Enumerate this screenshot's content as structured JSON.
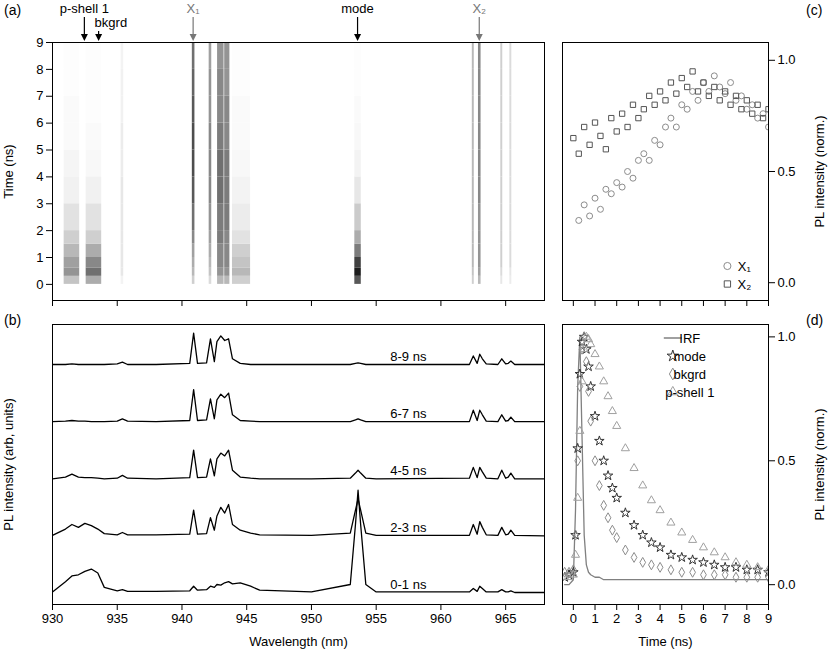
{
  "chart_data": [
    {
      "type": "heatmap",
      "title": "(a)",
      "y_label": "Time (ns)",
      "xlim": [
        930,
        968
      ],
      "xticks": [
        930,
        935,
        940,
        945,
        950,
        955,
        960,
        965
      ],
      "ylim": [
        -0.6,
        9
      ],
      "yticks": [
        0,
        1,
        2,
        3,
        4,
        5,
        6,
        7,
        8,
        9
      ],
      "tick_labels": "y",
      "zlim": [
        0,
        1
      ],
      "time_bins": [
        -0.6,
        0,
        0.3,
        0.6,
        1,
        1.5,
        2,
        3,
        4,
        5,
        6,
        7,
        8,
        9
      ],
      "lines": [
        {
          "wavelength": 931.5,
          "width": 1.2,
          "values": [
            0,
            0.25,
            0.45,
            0.4,
            0.3,
            0.2,
            0.12,
            0.06,
            0.04,
            0.02,
            0.02,
            0.01,
            0.01
          ]
        },
        {
          "wavelength": 933.2,
          "width": 1.2,
          "values": [
            0,
            0.35,
            0.6,
            0.5,
            0.35,
            0.2,
            0.12,
            0.06,
            0.03,
            0.02,
            0.01,
            0.01,
            0.01
          ]
        },
        {
          "wavelength": 935.4,
          "width": 0.2,
          "values": [
            0,
            0.05,
            0.1,
            0.1,
            0.1,
            0.1,
            0.1,
            0.1,
            0.08,
            0.08,
            0.06,
            0.06,
            0.05
          ]
        },
        {
          "wavelength": 940.9,
          "width": 0.2,
          "values": [
            0,
            0.2,
            0.3,
            0.35,
            0.4,
            0.5,
            0.6,
            0.7,
            0.75,
            0.75,
            0.7,
            0.65,
            0.6
          ]
        },
        {
          "wavelength": 942.2,
          "width": 0.2,
          "values": [
            0,
            0.15,
            0.25,
            0.3,
            0.35,
            0.4,
            0.45,
            0.5,
            0.5,
            0.5,
            0.45,
            0.45,
            0.4
          ]
        },
        {
          "wavelength": 943.0,
          "width": 0.5,
          "values": [
            0,
            0.3,
            0.45,
            0.5,
            0.5,
            0.55,
            0.55,
            0.6,
            0.6,
            0.55,
            0.5,
            0.5,
            0.45
          ]
        },
        {
          "wavelength": 943.5,
          "width": 0.4,
          "values": [
            0,
            0.3,
            0.45,
            0.5,
            0.5,
            0.5,
            0.55,
            0.55,
            0.55,
            0.5,
            0.5,
            0.45,
            0.45
          ]
        },
        {
          "wavelength": 944.6,
          "width": 1.4,
          "values": [
            0,
            0.2,
            0.3,
            0.25,
            0.2,
            0.12,
            0.08,
            0.05,
            0.03,
            0.02,
            0.02,
            0.01,
            0.01
          ]
        },
        {
          "wavelength": 953.6,
          "width": 0.5,
          "values": [
            0,
            0.7,
            0.95,
            0.8,
            0.55,
            0.35,
            0.22,
            0.1,
            0.05,
            0.03,
            0.02,
            0.01,
            0.01
          ]
        },
        {
          "wavelength": 962.5,
          "width": 0.15,
          "values": [
            0,
            0.2,
            0.25,
            0.3,
            0.3,
            0.3,
            0.3,
            0.3,
            0.3,
            0.3,
            0.3,
            0.3,
            0.3
          ]
        },
        {
          "wavelength": 963.0,
          "width": 0.2,
          "values": [
            0,
            0.3,
            0.4,
            0.45,
            0.45,
            0.45,
            0.45,
            0.5,
            0.5,
            0.5,
            0.5,
            0.5,
            0.5
          ]
        },
        {
          "wavelength": 964.7,
          "width": 0.15,
          "values": [
            0,
            0.1,
            0.15,
            0.2,
            0.2,
            0.2,
            0.2,
            0.2,
            0.2,
            0.2,
            0.2,
            0.2,
            0.2
          ]
        },
        {
          "wavelength": 965.4,
          "width": 0.15,
          "values": [
            0,
            0.08,
            0.1,
            0.15,
            0.15,
            0.15,
            0.15,
            0.15,
            0.15,
            0.15,
            0.15,
            0.15,
            0.15
          ]
        }
      ],
      "annotations": [
        {
          "text": "p-shell 1",
          "x": 932.5,
          "color": "#000000"
        },
        {
          "text": "bkgrd",
          "x": 933.6,
          "color": "#000000"
        },
        {
          "text": "X₁",
          "x": 940.9,
          "color": "#777777"
        },
        {
          "text": "mode",
          "x": 953.6,
          "color": "#000000"
        },
        {
          "text": "X₂",
          "x": 963.0,
          "color": "#777777"
        }
      ]
    },
    {
      "type": "line",
      "title": "(b)",
      "x_label": "Wavelength (nm)",
      "y_label": "PL intensity (arb, units)",
      "xlim": [
        930,
        968
      ],
      "xticks": [
        930,
        935,
        940,
        945,
        950,
        955,
        960,
        965
      ],
      "ylim": [
        -0.2,
        4.7
      ],
      "tick_labels": "x",
      "x": [
        930,
        931,
        931.5,
        932,
        932.5,
        933,
        933.5,
        934,
        935,
        935.4,
        935.8,
        938,
        940.6,
        940.9,
        941.2,
        941.9,
        942.2,
        942.5,
        942.7,
        943.0,
        943.3,
        943.6,
        943.9,
        944.5,
        945.3,
        946,
        950,
        953.0,
        953.4,
        953.6,
        953.8,
        954.2,
        955,
        962.2,
        962.5,
        962.8,
        963.0,
        963.2,
        963.5,
        964.4,
        964.7,
        965.0,
        965.2,
        965.4,
        965.7,
        968
      ],
      "series": [
        {
          "name": "0-1 ns",
          "color": "#000000",
          "values": [
            0.02,
            0.2,
            0.3,
            0.32,
            0.38,
            0.42,
            0.35,
            0.1,
            0.04,
            0.06,
            0.03,
            0.03,
            0.04,
            0.12,
            0.05,
            0.06,
            0.12,
            0.1,
            0.15,
            0.14,
            0.18,
            0.2,
            0.16,
            0.18,
            0.12,
            0.05,
            0.02,
            0.15,
            1.2,
            1.8,
            1.2,
            0.15,
            0.02,
            0.02,
            0.08,
            0.03,
            0.12,
            0.08,
            0.02,
            0.02,
            0.06,
            0.02,
            0.02,
            0.04,
            0.01,
            0.01
          ]
        },
        {
          "name": "2-3 ns",
          "color": "#000000",
          "values": [
            1.01,
            1.12,
            1.2,
            1.15,
            1.22,
            1.18,
            1.12,
            1.04,
            1.02,
            1.06,
            1.02,
            1.02,
            1.03,
            1.45,
            1.03,
            1.04,
            1.32,
            1.1,
            1.35,
            1.5,
            1.4,
            1.55,
            1.2,
            1.1,
            1.05,
            1.02,
            1.01,
            1.05,
            1.45,
            1.65,
            1.45,
            1.05,
            1.01,
            1.01,
            1.2,
            1.03,
            1.25,
            1.15,
            1.02,
            1.01,
            1.15,
            1.02,
            1.03,
            1.1,
            1.01,
            1.0
          ]
        },
        {
          "name": "4-5 ns",
          "color": "#000000",
          "values": [
            2.0,
            2.03,
            2.08,
            2.03,
            2.02,
            2.02,
            2.01,
            2.0,
            2.01,
            2.06,
            2.01,
            2.0,
            2.02,
            2.5,
            2.02,
            2.03,
            2.35,
            2.05,
            2.35,
            2.45,
            2.4,
            2.5,
            2.15,
            2.03,
            2.01,
            2.0,
            2.0,
            2.01,
            2.1,
            2.15,
            2.1,
            2.01,
            2.0,
            2.01,
            2.2,
            2.02,
            2.2,
            2.12,
            2.01,
            2.0,
            2.15,
            2.01,
            2.03,
            2.1,
            2.0,
            2.0
          ]
        },
        {
          "name": "6-7 ns",
          "color": "#000000",
          "values": [
            3.0,
            3.01,
            3.02,
            3.01,
            3.01,
            3.0,
            3.0,
            3.0,
            3.01,
            3.05,
            3.01,
            3.0,
            3.02,
            3.56,
            3.02,
            3.03,
            3.4,
            3.05,
            3.38,
            3.48,
            3.42,
            3.5,
            3.12,
            3.02,
            3.01,
            3.0,
            3.0,
            3.0,
            3.03,
            3.05,
            3.03,
            3.0,
            3.0,
            3.0,
            3.2,
            3.02,
            3.2,
            3.12,
            3.01,
            3.0,
            3.12,
            3.01,
            3.02,
            3.08,
            3.0,
            3.0
          ]
        },
        {
          "name": "8-9 ns",
          "color": "#000000",
          "values": [
            4.0,
            4.0,
            4.01,
            4.0,
            4.0,
            4.0,
            4.0,
            4.0,
            4.01,
            4.04,
            4.0,
            4.0,
            4.02,
            4.55,
            4.02,
            4.03,
            4.45,
            4.05,
            4.4,
            4.5,
            4.42,
            4.45,
            4.1,
            4.02,
            4.0,
            4.0,
            4.0,
            4.0,
            4.02,
            4.03,
            4.02,
            4.0,
            4.0,
            4.0,
            4.15,
            4.02,
            4.18,
            4.1,
            4.01,
            4.0,
            4.1,
            4.01,
            4.02,
            4.06,
            4.0,
            4.0
          ]
        }
      ]
    },
    {
      "type": "scatter",
      "title": "(c)",
      "y_label": "PL intensity (norm.)",
      "xlim": [
        -0.5,
        9
      ],
      "xticks": [
        0,
        1,
        2,
        3,
        4,
        5,
        6,
        7,
        8,
        9
      ],
      "ylim": [
        -0.08,
        1.08
      ],
      "yticks": [
        {
          "value": 0,
          "label": "0.0"
        },
        {
          "value": 0.5,
          "label": "0.5"
        },
        {
          "value": 1,
          "label": "1.0"
        }
      ],
      "tick_labels": "y",
      "legend": "lower right",
      "series": [
        {
          "name": "X₁",
          "color": "#8c8c8c",
          "marker": "circle",
          "x": [
            0.25,
            0.5,
            0.75,
            1,
            1.25,
            1.5,
            1.75,
            2,
            2.25,
            2.5,
            2.75,
            3,
            3.25,
            3.5,
            3.75,
            4,
            4.25,
            4.5,
            4.75,
            5,
            5.25,
            5.5,
            5.75,
            6,
            6.25,
            6.5,
            6.75,
            7,
            7.25,
            7.5,
            7.75,
            8,
            8.25,
            8.5,
            8.75,
            9
          ],
          "values": [
            0.28,
            0.35,
            0.3,
            0.38,
            0.33,
            0.42,
            0.4,
            0.45,
            0.43,
            0.5,
            0.47,
            0.55,
            0.58,
            0.55,
            0.64,
            0.62,
            0.7,
            0.74,
            0.7,
            0.8,
            0.78,
            0.86,
            0.82,
            0.9,
            0.86,
            0.93,
            0.88,
            0.85,
            0.9,
            0.82,
            0.84,
            0.78,
            0.8,
            0.74,
            0.76,
            0.7
          ]
        },
        {
          "name": "X₂",
          "color": "#555555",
          "marker": "square",
          "x": [
            0,
            0.25,
            0.5,
            0.75,
            1,
            1.25,
            1.5,
            1.75,
            2,
            2.25,
            2.5,
            2.75,
            3,
            3.25,
            3.5,
            3.75,
            4,
            4.25,
            4.5,
            4.75,
            5,
            5.25,
            5.5,
            5.75,
            6,
            6.25,
            6.5,
            6.75,
            7,
            7.25,
            7.5,
            7.75,
            8,
            8.25,
            8.5,
            8.75,
            9
          ],
          "values": [
            0.65,
            0.58,
            0.7,
            0.62,
            0.72,
            0.66,
            0.6,
            0.74,
            0.68,
            0.76,
            0.7,
            0.8,
            0.74,
            0.78,
            0.84,
            0.8,
            0.86,
            0.82,
            0.9,
            0.85,
            0.92,
            0.88,
            0.95,
            0.86,
            0.9,
            0.84,
            0.88,
            0.82,
            0.86,
            0.8,
            0.84,
            0.78,
            0.82,
            0.76,
            0.8,
            0.74,
            0.78
          ]
        }
      ]
    },
    {
      "type": "scatter",
      "title": "(d)",
      "x_label": "Time (ns)",
      "y_label": "PL intensity (norm.)",
      "xlim": [
        -0.5,
        9
      ],
      "xticks": [
        0,
        1,
        2,
        3,
        4,
        5,
        6,
        7,
        8,
        9
      ],
      "ylim": [
        -0.08,
        1.05
      ],
      "yticks": [
        {
          "value": 0,
          "label": "0.0"
        },
        {
          "value": 0.5,
          "label": "0.5"
        },
        {
          "value": 1,
          "label": "1.0"
        }
      ],
      "legend": "upper right",
      "x": [
        -0.4,
        -0.2,
        0,
        0.1,
        0.2,
        0.3,
        0.4,
        0.5,
        0.6,
        0.7,
        0.8,
        1.0,
        1.2,
        1.4,
        1.6,
        1.8,
        2.0,
        2.4,
        2.8,
        3.2,
        3.6,
        4.0,
        4.5,
        5.0,
        5.5,
        6.0,
        6.5,
        7.0,
        7.5,
        8.0,
        8.5,
        9.0
      ],
      "series": [
        {
          "name": "IRF",
          "type": "line",
          "color": "#808080",
          "line_style": "solid",
          "values": [
            0,
            0,
            0.02,
            0.3,
            0.8,
            1.0,
            0.6,
            0.2,
            0.08,
            0.05,
            0.04,
            0.03,
            0.03,
            0.02,
            0.02,
            0.02,
            0.02,
            0.02,
            0.02,
            0.02,
            0.02,
            0.02,
            0.02,
            0.02,
            0.02,
            0.02,
            0.02,
            0.02,
            0.02,
            0.02,
            0.02,
            0.02
          ]
        },
        {
          "name": "mode",
          "type": "scatter",
          "color": "#333333",
          "marker": "star",
          "values": [
            0.03,
            0.04,
            0.05,
            0.2,
            0.55,
            0.85,
            0.98,
            1.0,
            0.95,
            0.88,
            0.8,
            0.68,
            0.58,
            0.5,
            0.44,
            0.39,
            0.35,
            0.29,
            0.24,
            0.2,
            0.17,
            0.15,
            0.12,
            0.11,
            0.1,
            0.09,
            0.08,
            0.07,
            0.07,
            0.06,
            0.06,
            0.05
          ]
        },
        {
          "name": "bkgrd",
          "type": "scatter",
          "color": "#8c8c8c",
          "marker": "diamond",
          "values": [
            0.05,
            0.05,
            0.06,
            0.2,
            0.5,
            0.8,
            0.95,
            1.0,
            0.9,
            0.78,
            0.66,
            0.5,
            0.4,
            0.32,
            0.27,
            0.22,
            0.19,
            0.14,
            0.11,
            0.09,
            0.08,
            0.07,
            0.06,
            0.05,
            0.05,
            0.04,
            0.04,
            0.04,
            0.03,
            0.03,
            0.03,
            0.03
          ]
        },
        {
          "name": "p-shell 1",
          "type": "scatter",
          "color": "#a0a0a0",
          "marker": "triangle",
          "values": [
            0.03,
            0.03,
            0.04,
            0.12,
            0.35,
            0.62,
            0.82,
            0.95,
            1.0,
            0.99,
            0.97,
            0.93,
            0.88,
            0.82,
            0.76,
            0.7,
            0.64,
            0.55,
            0.47,
            0.4,
            0.34,
            0.3,
            0.25,
            0.21,
            0.18,
            0.15,
            0.13,
            0.11,
            0.09,
            0.08,
            0.07,
            0.06
          ]
        }
      ]
    }
  ]
}
